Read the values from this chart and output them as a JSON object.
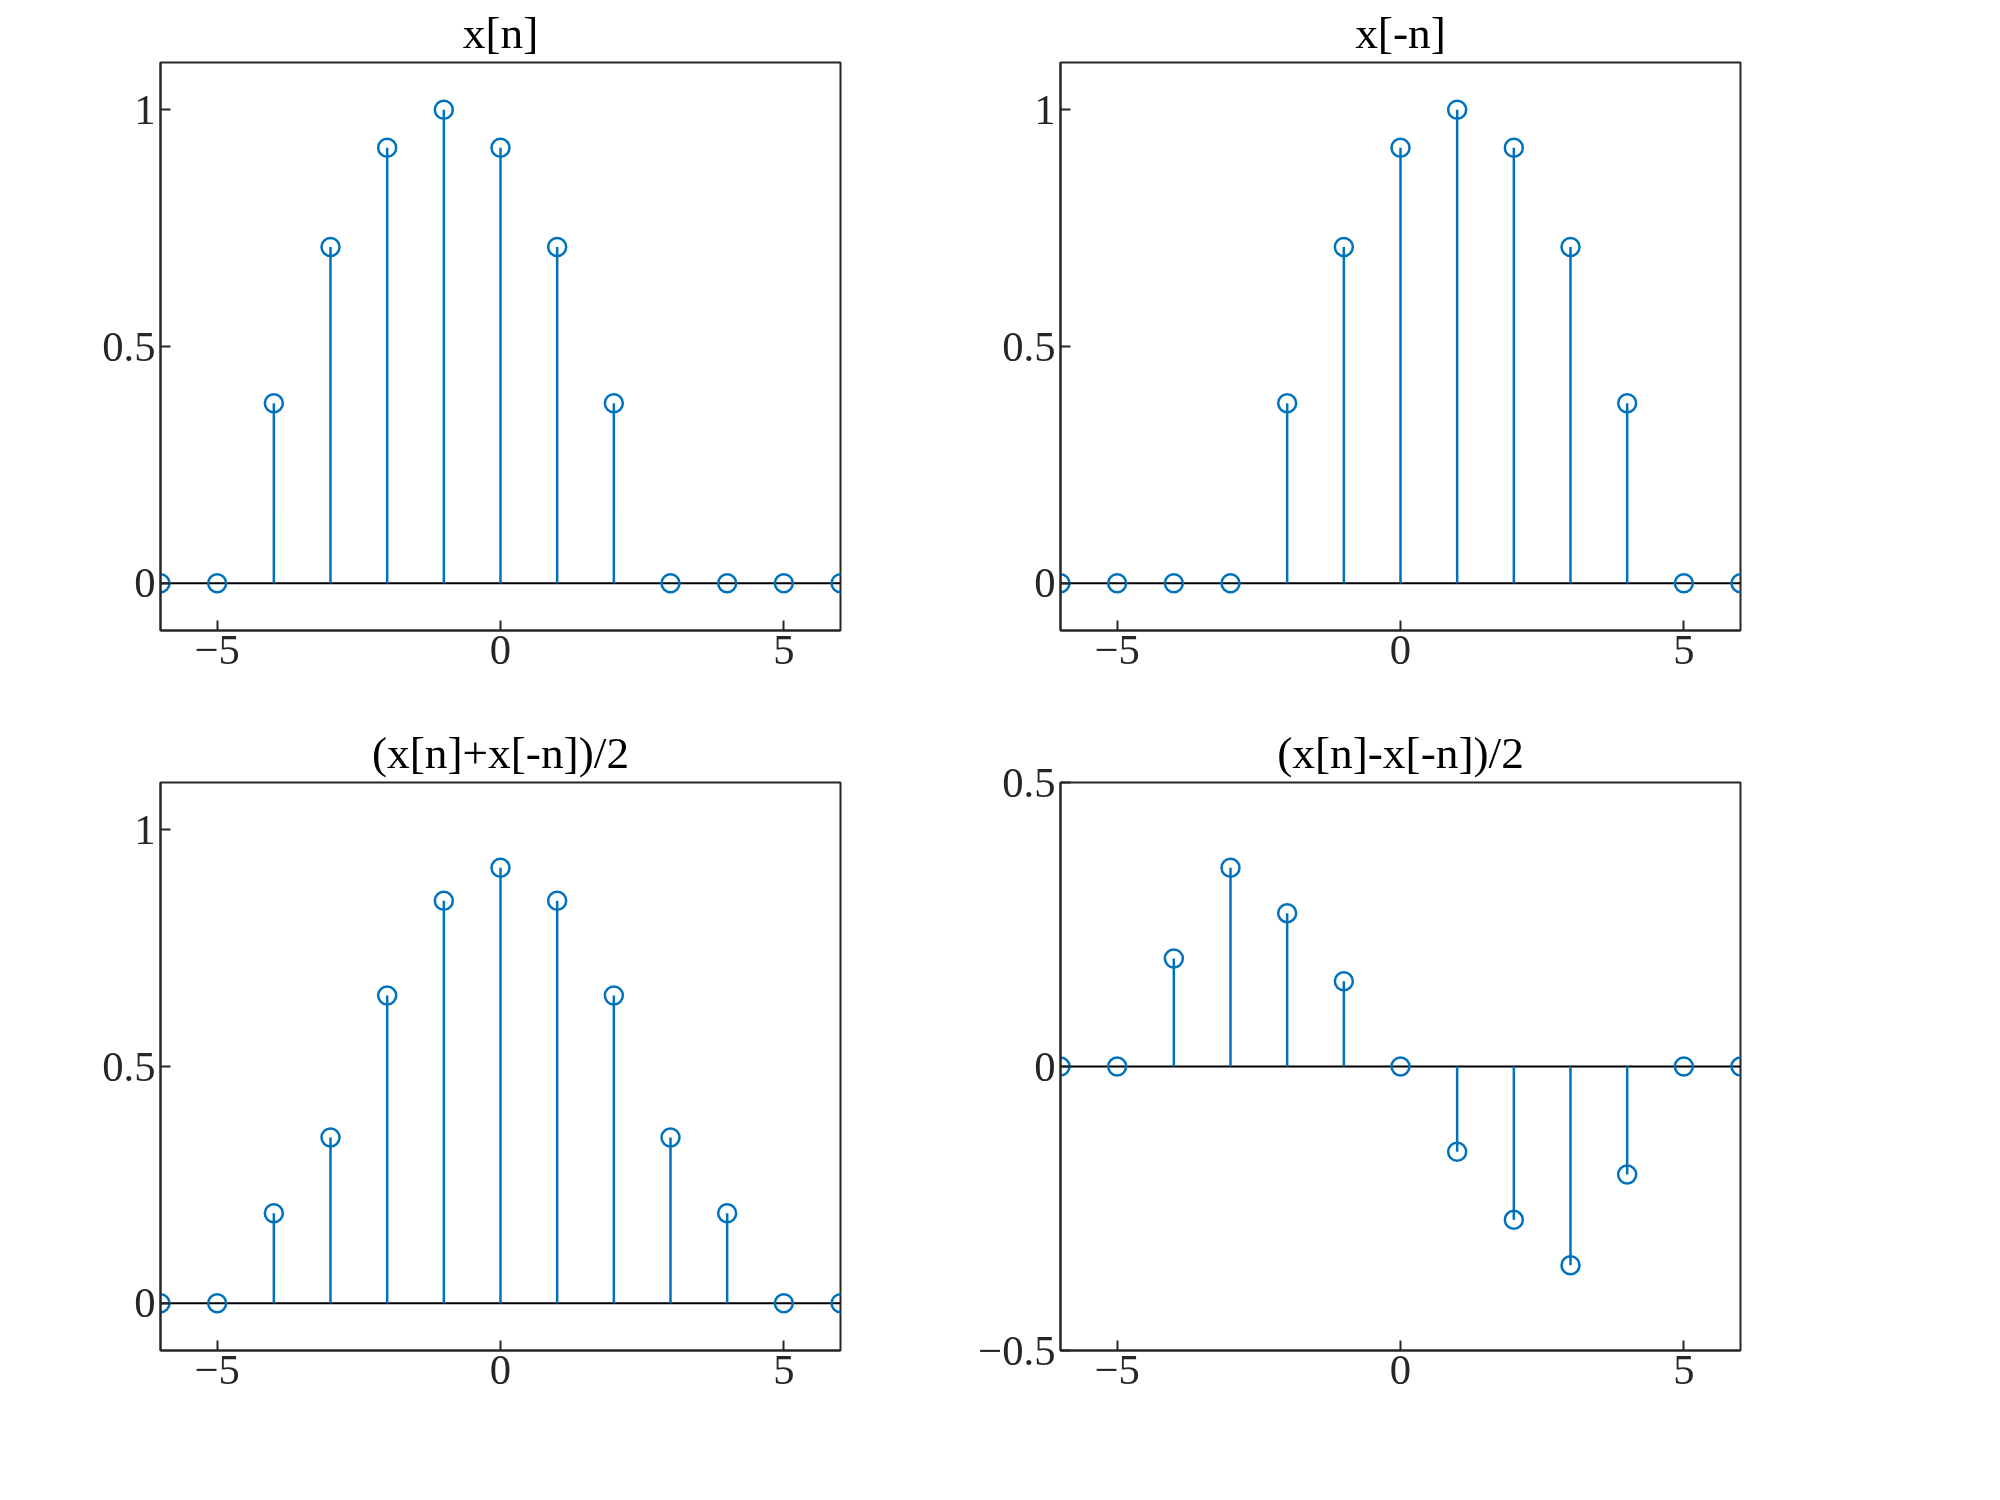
{
  "chart_data": [
    {
      "type": "lollipop",
      "title": "x[n]",
      "x": [
        -6,
        -5,
        -4,
        -3,
        -2,
        -1,
        0,
        1,
        2,
        3,
        4,
        5,
        6
      ],
      "marker": "circle",
      "grid": false,
      "ref_lines": [
        {
          "axis": "y",
          "value": 0,
          "color": "#000000"
        }
      ],
      "series": [
        {
          "color": "#0072bd",
          "values": [
            0,
            0,
            0.38,
            0.71,
            0.92,
            1,
            0.92,
            0.71,
            0.38,
            0,
            0,
            0,
            0
          ]
        }
      ],
      "xlim": [
        -6,
        6
      ],
      "xticks": [
        -5,
        0,
        5
      ],
      "ylim": [
        -0.1,
        1.1
      ],
      "yticks": [
        0,
        0.5,
        1
      ]
    },
    {
      "type": "lollipop",
      "title": "x[-n]",
      "x": [
        -6,
        -5,
        -4,
        -3,
        -2,
        -1,
        0,
        1,
        2,
        3,
        4,
        5,
        6
      ],
      "marker": "circle",
      "grid": false,
      "ref_lines": [
        {
          "axis": "y",
          "value": 0,
          "color": "#000000"
        }
      ],
      "series": [
        {
          "color": "#0072bd",
          "values": [
            0,
            0,
            0,
            0,
            0.38,
            0.71,
            0.92,
            1,
            0.92,
            0.71,
            0.38,
            0,
            0
          ]
        }
      ],
      "xlim": [
        -6,
        6
      ],
      "xticks": [
        -5,
        0,
        5
      ],
      "ylim": [
        -0.1,
        1.1
      ],
      "yticks": [
        0,
        0.5,
        1
      ]
    },
    {
      "type": "lollipop",
      "title": "(x[n]+x[-n])/2",
      "x": [
        -6,
        -5,
        -4,
        -3,
        -2,
        -1,
        0,
        1,
        2,
        3,
        4,
        5,
        6
      ],
      "marker": "circle",
      "grid": false,
      "ref_lines": [
        {
          "axis": "y",
          "value": 0,
          "color": "#000000"
        }
      ],
      "series": [
        {
          "color": "#0072bd",
          "values": [
            0,
            0,
            0.19,
            0.35,
            0.65,
            0.85,
            0.92,
            0.85,
            0.65,
            0.35,
            0.19,
            0,
            0
          ]
        }
      ],
      "xlim": [
        -6,
        6
      ],
      "xticks": [
        -5,
        0,
        5
      ],
      "ylim": [
        -0.1,
        1.1
      ],
      "yticks": [
        0,
        0.5,
        1
      ]
    },
    {
      "type": "lollipop",
      "title": "(x[n]-x[-n])/2",
      "x": [
        -6,
        -5,
        -4,
        -3,
        -2,
        -1,
        0,
        1,
        2,
        3,
        4,
        5,
        6
      ],
      "marker": "circle",
      "grid": false,
      "ref_lines": [
        {
          "axis": "y",
          "value": 0,
          "color": "#000000"
        }
      ],
      "series": [
        {
          "color": "#0072bd",
          "values": [
            0,
            0,
            0.19,
            0.35,
            0.27,
            0.15,
            0,
            -0.15,
            -0.27,
            -0.35,
            -0.19,
            0,
            0
          ]
        }
      ],
      "xlim": [
        -6,
        6
      ],
      "xticks": [
        -5,
        0,
        5
      ],
      "ylim": [
        -0.5,
        0.5
      ],
      "yticks": [
        -0.5,
        0,
        0.5
      ]
    }
  ]
}
